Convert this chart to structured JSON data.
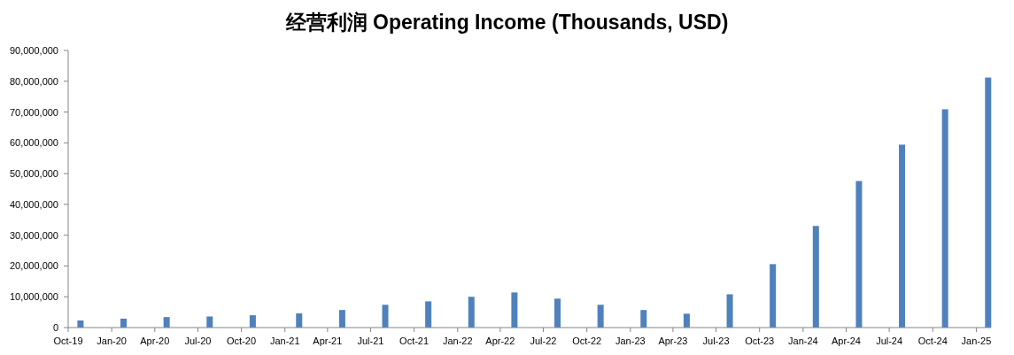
{
  "chart_data": {
    "type": "bar",
    "title": "经营利润 Operating Income (Thousands, USD)",
    "x": [
      "2019-10-27",
      "2020-01-26",
      "2020-04-26",
      "2020-07-26",
      "2020-10-25",
      "2021-01-31",
      "2021-05-02",
      "2021-08-01",
      "2021-10-31",
      "2022-01-30",
      "2022-05-01",
      "2022-07-31",
      "2022-10-30",
      "2023-01-29",
      "2023-04-30",
      "2023-07-30",
      "2023-10-29",
      "2024-01-28",
      "2024-04-28",
      "2024-07-28",
      "2024-10-27",
      "2025-01-26"
    ],
    "values": [
      2300000,
      2900000,
      3400000,
      3600000,
      4000000,
      4600000,
      5700000,
      7400000,
      8500000,
      10000000,
      11400000,
      9400000,
      7400000,
      5700000,
      4500000,
      10800000,
      20600000,
      33000000,
      47600000,
      59400000,
      70900000,
      81200000
    ],
    "color": "#4f81bd",
    "xlim": [
      "2019-10-01",
      "2025-02-01"
    ],
    "xticks": [
      {
        "value": "2019-10-01",
        "label": "Oct-19"
      },
      {
        "value": "2020-01-01",
        "label": "Jan-20"
      },
      {
        "value": "2020-04-01",
        "label": "Apr-20"
      },
      {
        "value": "2020-07-01",
        "label": "Jul-20"
      },
      {
        "value": "2020-10-01",
        "label": "Oct-20"
      },
      {
        "value": "2021-01-01",
        "label": "Jan-21"
      },
      {
        "value": "2021-04-01",
        "label": "Apr-21"
      },
      {
        "value": "2021-07-01",
        "label": "Jul-21"
      },
      {
        "value": "2021-10-01",
        "label": "Oct-21"
      },
      {
        "value": "2022-01-01",
        "label": "Jan-22"
      },
      {
        "value": "2022-04-01",
        "label": "Apr-22"
      },
      {
        "value": "2022-07-01",
        "label": "Jul-22"
      },
      {
        "value": "2022-10-01",
        "label": "Oct-22"
      },
      {
        "value": "2023-01-01",
        "label": "Jan-23"
      },
      {
        "value": "2023-04-01",
        "label": "Apr-23"
      },
      {
        "value": "2023-07-01",
        "label": "Jul-23"
      },
      {
        "value": "2023-10-01",
        "label": "Oct-23"
      },
      {
        "value": "2024-01-01",
        "label": "Jan-24"
      },
      {
        "value": "2024-04-01",
        "label": "Apr-24"
      },
      {
        "value": "2024-07-01",
        "label": "Jul-24"
      },
      {
        "value": "2024-10-01",
        "label": "Oct-24"
      },
      {
        "value": "2025-01-01",
        "label": "Jan-25"
      }
    ],
    "ylim": [
      0,
      90000000
    ],
    "yticks": [
      {
        "value": 0,
        "label": "0"
      },
      {
        "value": 10000000,
        "label": "10,000,000"
      },
      {
        "value": 20000000,
        "label": "20,000,000"
      },
      {
        "value": 30000000,
        "label": "30,000,000"
      },
      {
        "value": 40000000,
        "label": "40,000,000"
      },
      {
        "value": 50000000,
        "label": "50,000,000"
      },
      {
        "value": 60000000,
        "label": "60,000,000"
      },
      {
        "value": 70000000,
        "label": "70,000,000"
      },
      {
        "value": 80000000,
        "label": "80,000,000"
      },
      {
        "value": 90000000,
        "label": "90,000,000"
      }
    ]
  }
}
